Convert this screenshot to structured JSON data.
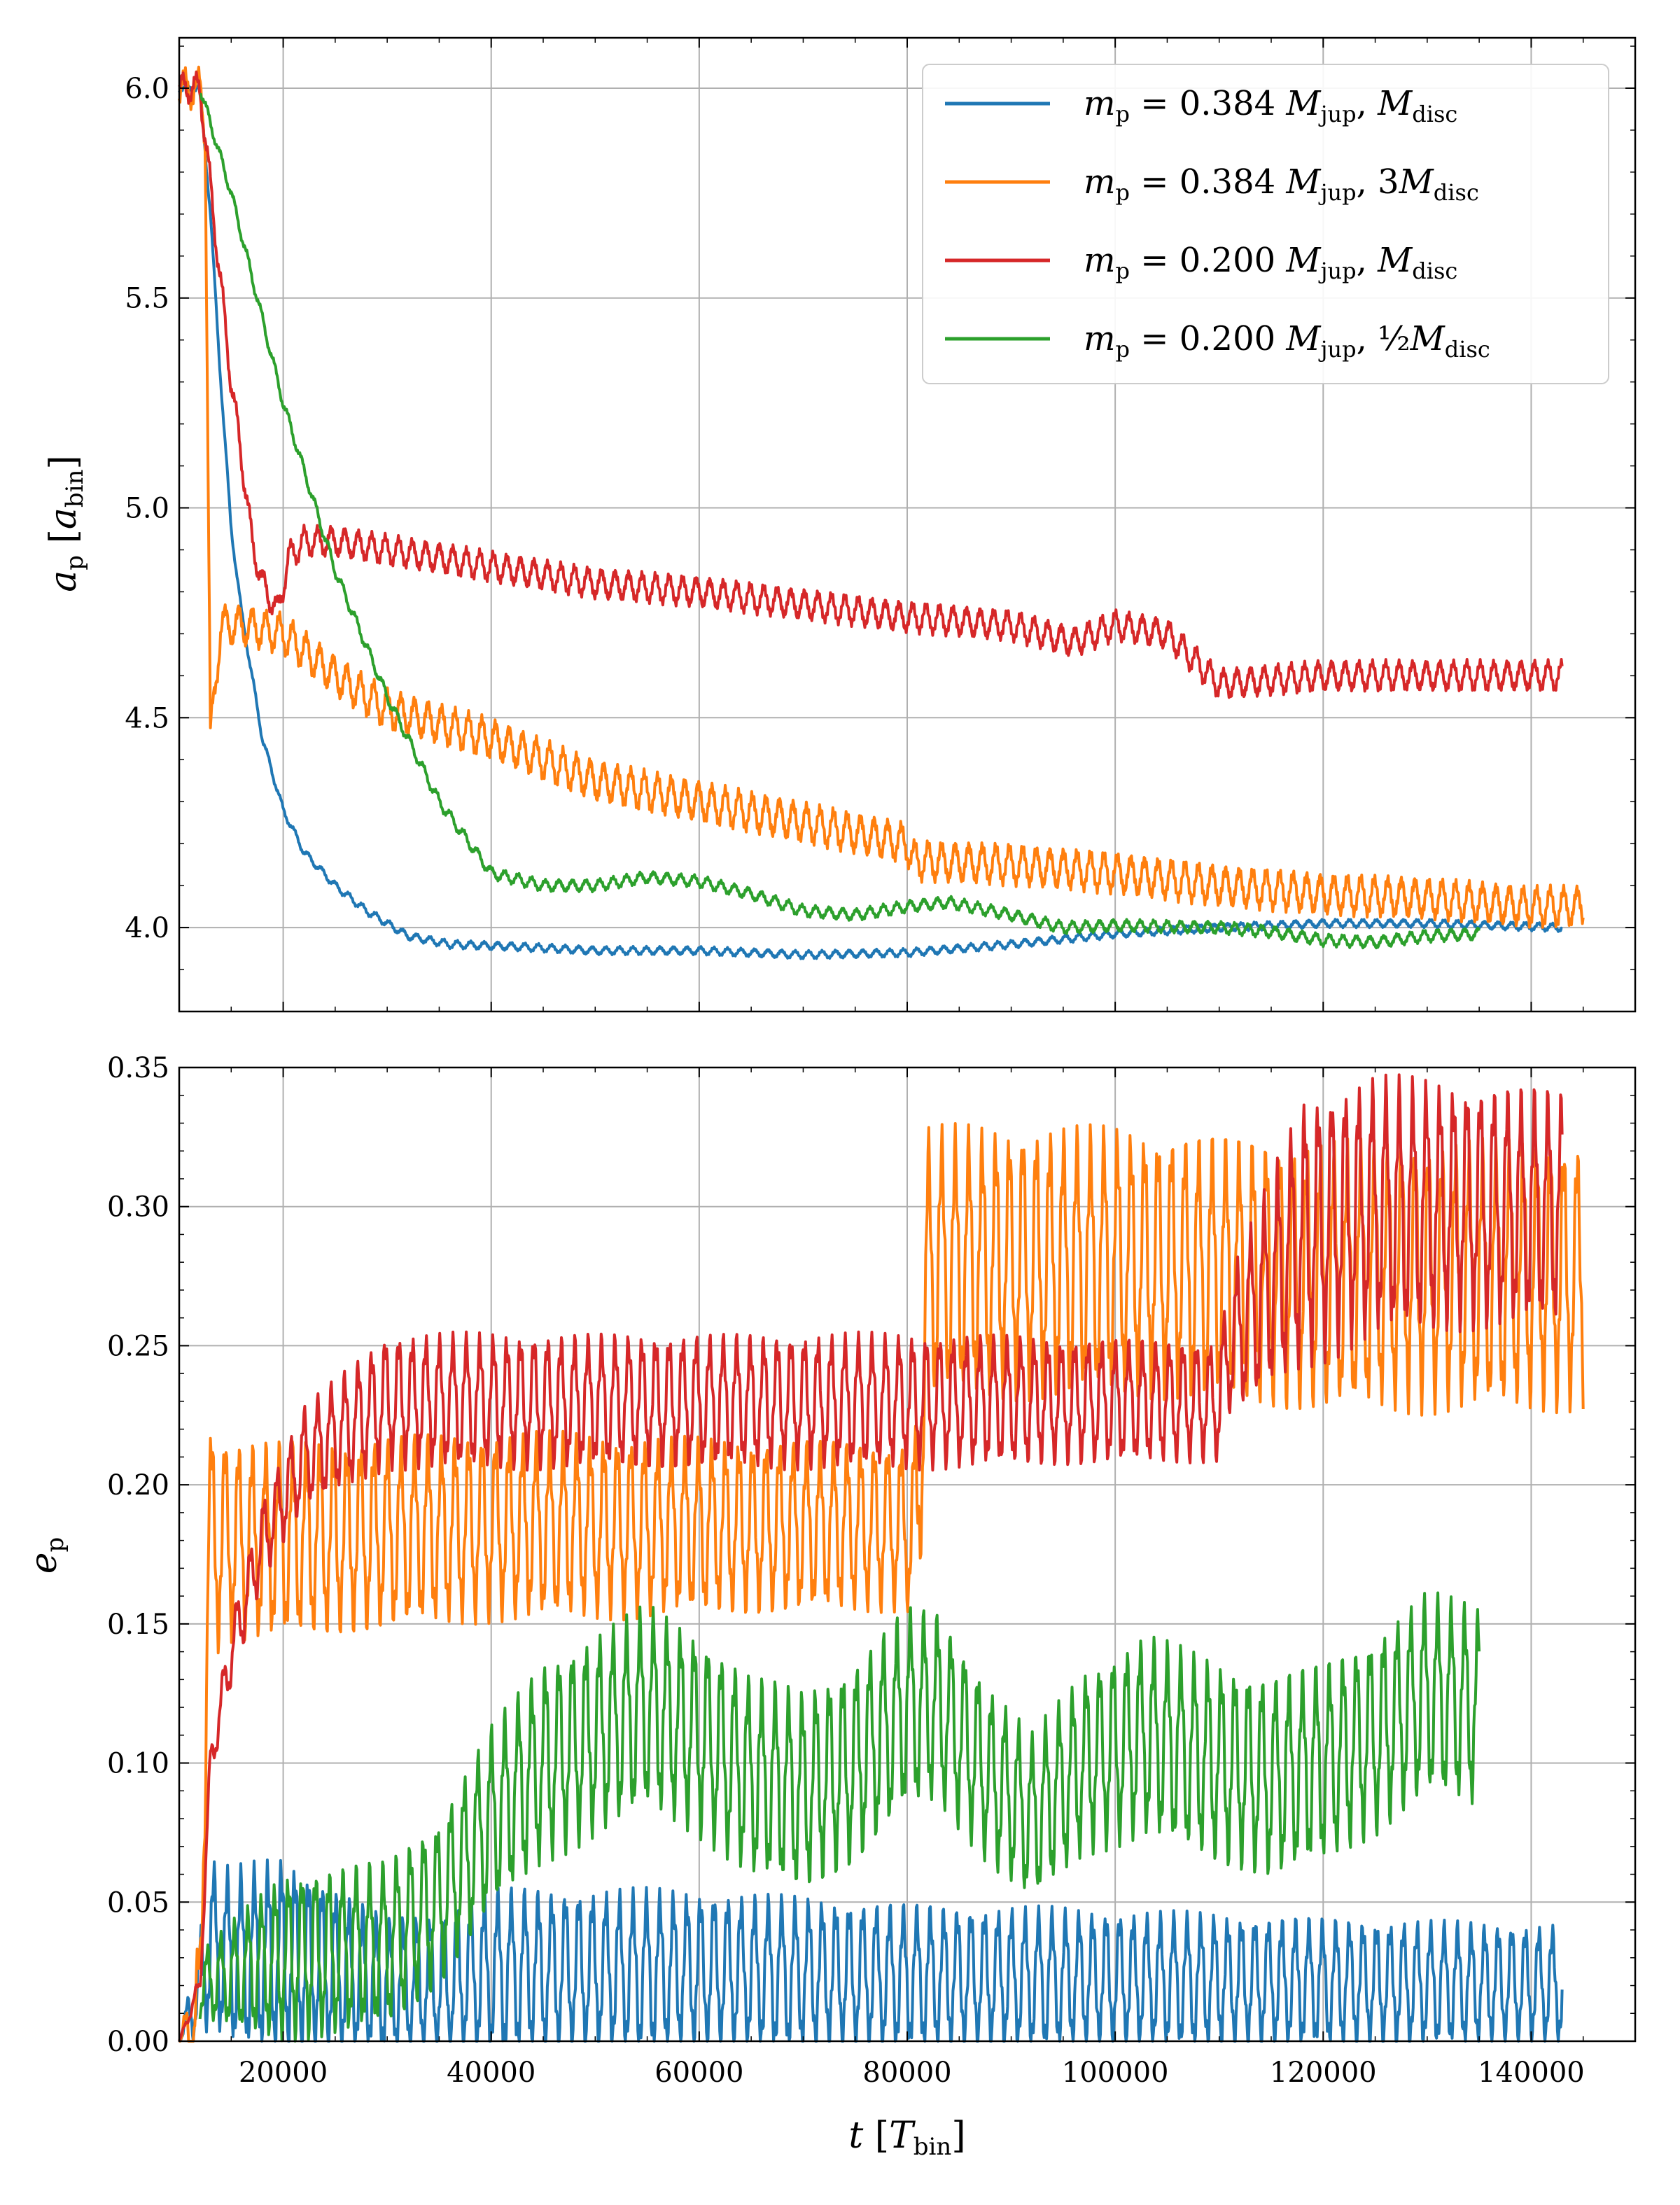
{
  "chart_data": [
    {
      "type": "line",
      "panel": "top",
      "ylabel": "a_p [a_bin]",
      "xlabel": "",
      "xlim": [
        10000,
        150000
      ],
      "ylim": [
        3.8,
        6.12
      ],
      "x_ticks": [
        "20000",
        "40000",
        "60000",
        "80000",
        "100000",
        "120000",
        "140000"
      ],
      "y_ticks": [
        "4.0",
        "4.5",
        "5.0",
        "5.5",
        "6.0"
      ],
      "grid": true,
      "legend_position": "top-right",
      "series": [
        {
          "name": "m_p = 0.384 M_jup, M_disc",
          "color": "#1f77b4",
          "points": [
            [
              10000,
              6.0
            ],
            [
              12000,
              6.0
            ],
            [
              13000,
              5.7
            ],
            [
              14000,
              5.3
            ],
            [
              15000,
              4.95
            ],
            [
              16000,
              4.75
            ],
            [
              17000,
              4.6
            ],
            [
              18000,
              4.45
            ],
            [
              20000,
              4.28
            ],
            [
              22000,
              4.18
            ],
            [
              25000,
              4.1
            ],
            [
              28000,
              4.04
            ],
            [
              32000,
              3.98
            ],
            [
              36000,
              3.96
            ],
            [
              42000,
              3.955
            ],
            [
              50000,
              3.945
            ],
            [
              60000,
              3.945
            ],
            [
              65000,
              3.94
            ],
            [
              70000,
              3.935
            ],
            [
              80000,
              3.94
            ],
            [
              90000,
              3.96
            ],
            [
              100000,
              3.985
            ],
            [
              110000,
              4.0
            ],
            [
              120000,
              4.01
            ],
            [
              130000,
              4.01
            ],
            [
              143000,
              4.0
            ]
          ],
          "noise": 0.008
        },
        {
          "name": "m_p = 0.384 M_jup, 3M_disc",
          "color": "#ff7f0e",
          "points": [
            [
              10000,
              6.0
            ],
            [
              12000,
              6.0
            ],
            [
              12500,
              5.9
            ],
            [
              13000,
              4.45
            ],
            [
              14000,
              4.72
            ],
            [
              16000,
              4.72
            ],
            [
              20000,
              4.7
            ],
            [
              25000,
              4.6
            ],
            [
              30000,
              4.52
            ],
            [
              40000,
              4.45
            ],
            [
              50000,
              4.35
            ],
            [
              60000,
              4.3
            ],
            [
              70000,
              4.25
            ],
            [
              80000,
              4.2
            ],
            [
              80500,
              4.16
            ],
            [
              90000,
              4.15
            ],
            [
              100000,
              4.13
            ],
            [
              110000,
              4.1
            ],
            [
              120000,
              4.08
            ],
            [
              130000,
              4.07
            ],
            [
              140000,
              4.05
            ],
            [
              145000,
              4.05
            ]
          ],
          "noise": 0.04
        },
        {
          "name": "m_p = 0.200 M_jup, M_disc",
          "color": "#d62728",
          "points": [
            [
              10000,
              6.0
            ],
            [
              12000,
              6.0
            ],
            [
              13500,
              5.65
            ],
            [
              15000,
              5.3
            ],
            [
              16000,
              5.12
            ],
            [
              17000,
              4.92
            ],
            [
              18000,
              4.82
            ],
            [
              19500,
              4.75
            ],
            [
              20500,
              4.88
            ],
            [
              22000,
              4.92
            ],
            [
              25000,
              4.92
            ],
            [
              30000,
              4.9
            ],
            [
              40000,
              4.86
            ],
            [
              50000,
              4.82
            ],
            [
              60000,
              4.8
            ],
            [
              70000,
              4.77
            ],
            [
              80000,
              4.74
            ],
            [
              90000,
              4.72
            ],
            [
              96000,
              4.68
            ],
            [
              100000,
              4.72
            ],
            [
              105000,
              4.7
            ],
            [
              110000,
              4.58
            ],
            [
              120000,
              4.6
            ],
            [
              130000,
              4.6
            ],
            [
              143000,
              4.6
            ]
          ],
          "noise": 0.03
        },
        {
          "name": "m_p = 0.200 M_jup, 1/2 M_disc",
          "color": "#2ca02c",
          "points": [
            [
              12000,
              6.0
            ],
            [
              15000,
              5.75
            ],
            [
              20000,
              5.25
            ],
            [
              25000,
              4.85
            ],
            [
              30000,
              4.55
            ],
            [
              35000,
              4.3
            ],
            [
              40000,
              4.13
            ],
            [
              45000,
              4.1
            ],
            [
              50000,
              4.1
            ],
            [
              55000,
              4.12
            ],
            [
              60000,
              4.11
            ],
            [
              65000,
              4.08
            ],
            [
              70000,
              4.04
            ],
            [
              75000,
              4.03
            ],
            [
              80000,
              4.05
            ],
            [
              84000,
              4.06
            ],
            [
              90000,
              4.03
            ],
            [
              95000,
              4.0
            ],
            [
              100000,
              4.005
            ],
            [
              110000,
              4.0
            ],
            [
              115000,
              3.99
            ],
            [
              120000,
              3.97
            ],
            [
              125000,
              3.965
            ],
            [
              130000,
              3.98
            ],
            [
              135000,
              3.985
            ]
          ],
          "noise": 0.012
        }
      ]
    },
    {
      "type": "line",
      "panel": "bottom",
      "ylabel": "e_p",
      "xlabel": "t [T_bin]",
      "xlim": [
        10000,
        150000
      ],
      "ylim": [
        0.0,
        0.35
      ],
      "x_ticks": [
        "20000",
        "40000",
        "60000",
        "80000",
        "100000",
        "120000",
        "140000"
      ],
      "y_ticks": [
        "0.00",
        "0.05",
        "0.10",
        "0.15",
        "0.20",
        "0.25",
        "0.30",
        "0.35"
      ],
      "grid": true,
      "series": [
        {
          "name": "m_p = 0.384 M_jup, M_disc",
          "color": "#1f77b4",
          "points": [
            [
              10000,
              0.0
            ],
            [
              12000,
              0.02
            ],
            [
              13000,
              0.035
            ],
            [
              15000,
              0.03
            ],
            [
              20000,
              0.03
            ],
            [
              25000,
              0.025
            ],
            [
              30000,
              0.02
            ],
            [
              35000,
              0.02
            ],
            [
              40000,
              0.025
            ],
            [
              50000,
              0.025
            ],
            [
              60000,
              0.025
            ],
            [
              70000,
              0.024
            ],
            [
              80000,
              0.023
            ],
            [
              100000,
              0.022
            ],
            [
              120000,
              0.021
            ],
            [
              143000,
              0.02
            ]
          ],
          "amplitude": [
            [
              10000,
              0.0
            ],
            [
              13000,
              0.025
            ],
            [
              20000,
              0.03
            ],
            [
              30000,
              0.02
            ],
            [
              40000,
              0.025
            ],
            [
              60000,
              0.024
            ],
            [
              80000,
              0.022
            ],
            [
              143000,
              0.018
            ]
          ]
        },
        {
          "name": "m_p = 0.384 M_jup, 3M_disc",
          "color": "#ff7f0e",
          "points": [
            [
              10000,
              0.0
            ],
            [
              12000,
              0.01
            ],
            [
              12800,
              0.18
            ],
            [
              15000,
              0.18
            ],
            [
              20000,
              0.18
            ],
            [
              40000,
              0.185
            ],
            [
              60000,
              0.185
            ],
            [
              80000,
              0.185
            ],
            [
              81000,
              0.185
            ],
            [
              82000,
              0.28
            ],
            [
              100000,
              0.28
            ],
            [
              120000,
              0.275
            ],
            [
              145000,
              0.275
            ]
          ],
          "amplitude": [
            [
              10000,
              0.0
            ],
            [
              12800,
              0.035
            ],
            [
              15000,
              0.03
            ],
            [
              40000,
              0.028
            ],
            [
              80000,
              0.025
            ],
            [
              82000,
              0.04
            ],
            [
              100000,
              0.04
            ],
            [
              145000,
              0.04
            ]
          ]
        },
        {
          "name": "m_p = 0.200 M_jup, M_disc",
          "color": "#d62728",
          "points": [
            [
              10000,
              0.0
            ],
            [
              12000,
              0.02
            ],
            [
              13000,
              0.1
            ],
            [
              15000,
              0.14
            ],
            [
              18000,
              0.18
            ],
            [
              22000,
              0.21
            ],
            [
              30000,
              0.23
            ],
            [
              50000,
              0.23
            ],
            [
              80000,
              0.23
            ],
            [
              100000,
              0.23
            ],
            [
              110000,
              0.23
            ],
            [
              111000,
              0.25
            ],
            [
              118000,
              0.29
            ],
            [
              125000,
              0.3
            ],
            [
              143000,
              0.3
            ]
          ],
          "amplitude": [
            [
              10000,
              0.0
            ],
            [
              15000,
              0.01
            ],
            [
              22000,
              0.015
            ],
            [
              30000,
              0.02
            ],
            [
              80000,
              0.02
            ],
            [
              110000,
              0.018
            ],
            [
              118000,
              0.04
            ],
            [
              143000,
              0.035
            ]
          ]
        },
        {
          "name": "m_p = 0.200 M_jup, 1/2 M_disc",
          "color": "#2ca02c",
          "points": [
            [
              12000,
              0.02
            ],
            [
              20000,
              0.03
            ],
            [
              30000,
              0.035
            ],
            [
              35000,
              0.05
            ],
            [
              40000,
              0.08
            ],
            [
              45000,
              0.1
            ],
            [
              50000,
              0.11
            ],
            [
              55000,
              0.12
            ],
            [
              60000,
              0.11
            ],
            [
              65000,
              0.095
            ],
            [
              70000,
              0.09
            ],
            [
              75000,
              0.1
            ],
            [
              80000,
              0.12
            ],
            [
              83000,
              0.12
            ],
            [
              88000,
              0.095
            ],
            [
              92000,
              0.08
            ],
            [
              97000,
              0.1
            ],
            [
              103000,
              0.11
            ],
            [
              110000,
              0.1
            ],
            [
              115000,
              0.095
            ],
            [
              120000,
              0.1
            ],
            [
              125000,
              0.11
            ],
            [
              130000,
              0.125
            ],
            [
              135000,
              0.12
            ]
          ],
          "amplitude": [
            [
              12000,
              0.01
            ],
            [
              20000,
              0.025
            ],
            [
              35000,
              0.025
            ],
            [
              45000,
              0.03
            ],
            [
              55000,
              0.03
            ],
            [
              70000,
              0.03
            ],
            [
              80000,
              0.03
            ],
            [
              92000,
              0.025
            ],
            [
              103000,
              0.03
            ],
            [
              135000,
              0.03
            ]
          ]
        }
      ]
    }
  ]
}
